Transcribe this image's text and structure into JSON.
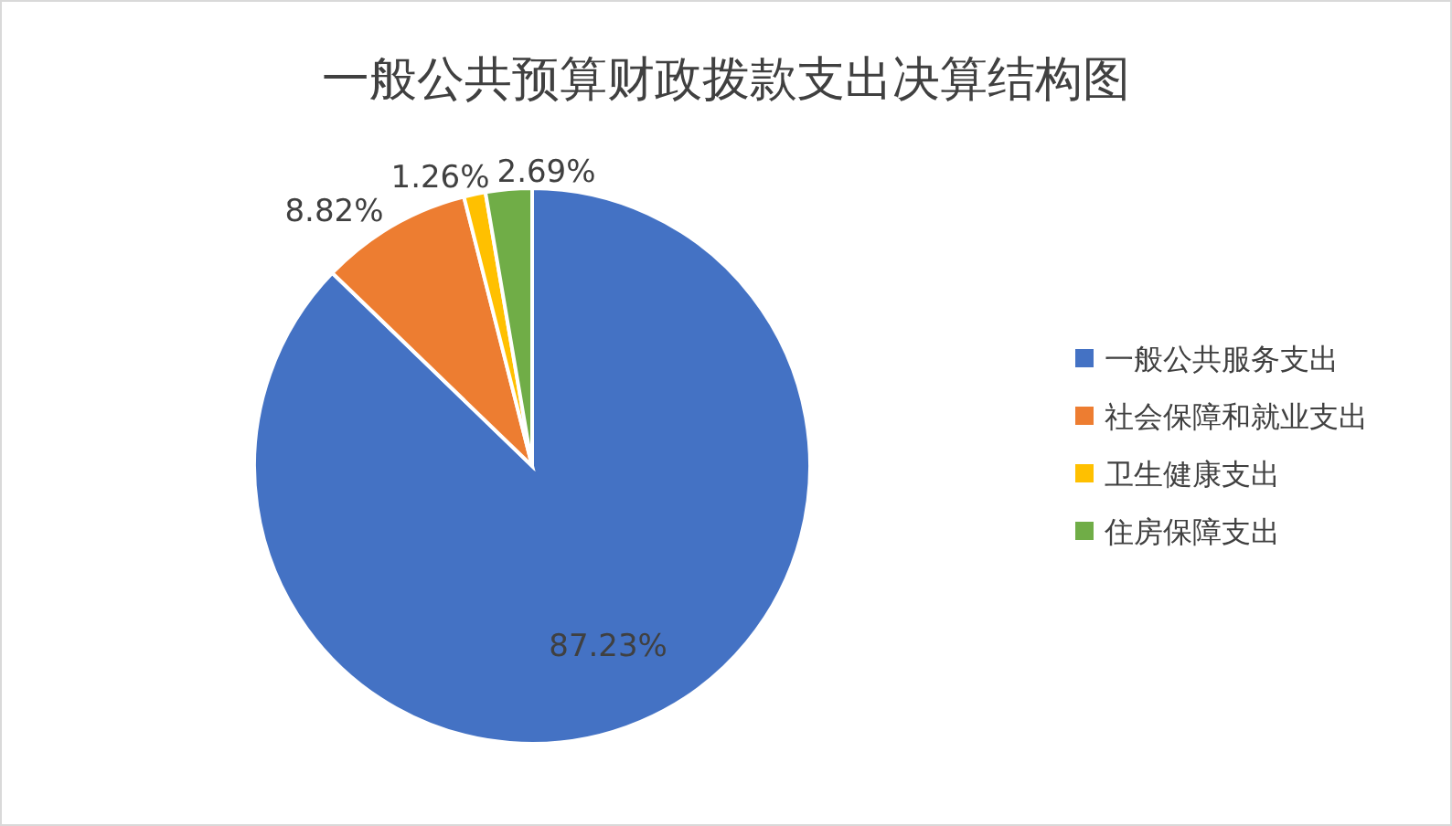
{
  "chart_data": {
    "type": "pie",
    "title": "一般公共预算财政拨款支出决算结构图",
    "categories": [
      "一般公共服务支出",
      "社会保障和就业支出",
      "卫生健康支出",
      "住房保障支出"
    ],
    "values": [
      87.23,
      8.82,
      1.26,
      2.69
    ],
    "colors": [
      "#4472c4",
      "#ed7d31",
      "#ffc000",
      "#70ad47"
    ],
    "value_labels": [
      "87.23%",
      "8.82%",
      "1.26%",
      "2.69%"
    ],
    "legend": "right"
  }
}
